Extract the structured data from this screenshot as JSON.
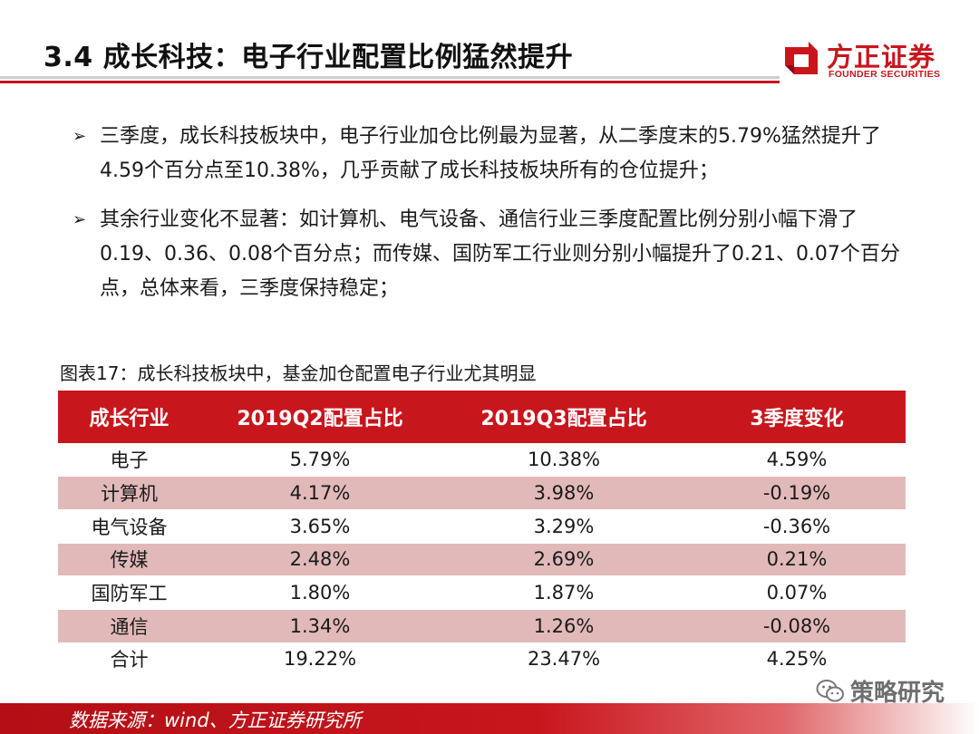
{
  "header": {
    "title": "3.4 成长科技：电子行业配置比例猛然提升",
    "logo_cn": "方正证券",
    "logo_en": "FOUNDER SECURITIES"
  },
  "bullets": [
    "三季度，成长科技板块中，电子行业加仓比例最为显著，从二季度末的5.79%猛然提升了4.59个百分点至10.38%，几乎贡献了成长科技板块所有的仓位提升；",
    "其余行业变化不显著：如计算机、电气设备、通信行业三季度配置比例分别小幅下滑了0.19、0.36、0.08个百分点；而传媒、国防军工行业则分别小幅提升了0.21、0.07个百分点，总体来看，三季度保持稳定；"
  ],
  "table": {
    "caption": "图表17：成长科技板块中，基金加仓配置电子行业尤其明显",
    "headers": [
      "成长行业",
      "2019Q2配置占比",
      "2019Q3配置占比",
      "3季度变化"
    ],
    "rows": [
      [
        "电子",
        "5.79%",
        "10.38%",
        "4.59%"
      ],
      [
        "计算机",
        "4.17%",
        "3.98%",
        "-0.19%"
      ],
      [
        "电气设备",
        "3.65%",
        "3.29%",
        "-0.36%"
      ],
      [
        "传媒",
        "2.48%",
        "2.69%",
        "0.21%"
      ],
      [
        "国防军工",
        "1.80%",
        "1.87%",
        "0.07%"
      ],
      [
        "通信",
        "1.34%",
        "1.26%",
        "-0.08%"
      ],
      [
        "合计",
        "19.22%",
        "23.47%",
        "4.25%"
      ]
    ]
  },
  "watermark": {
    "text": "策略研究",
    "icon": "wechat-icon"
  },
  "footer": {
    "source": "数据来源：wind、方正证券研究所"
  },
  "colors": {
    "brand_red": "#c8161d",
    "alt_row": "#e2b9b9"
  }
}
